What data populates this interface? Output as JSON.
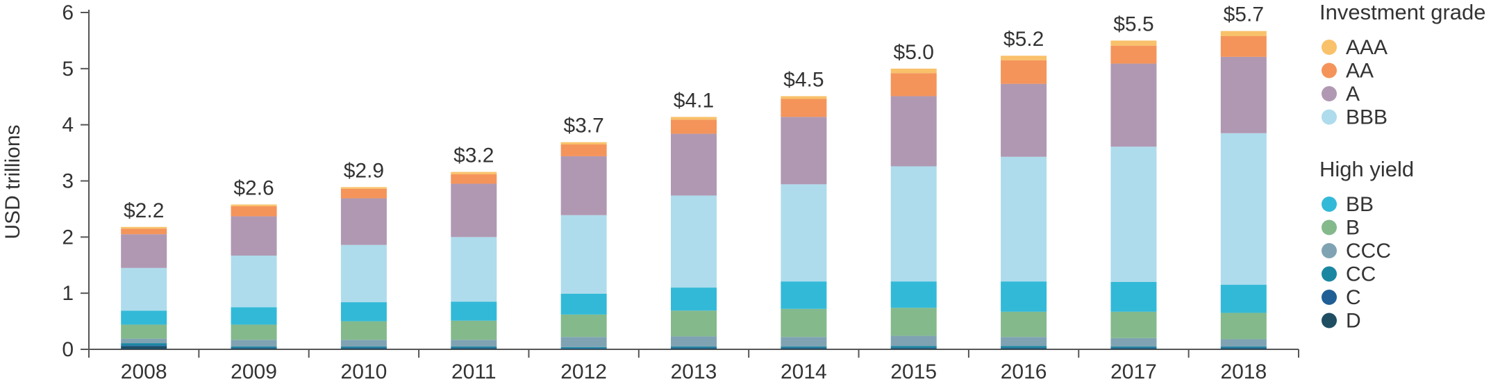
{
  "chart_data": {
    "type": "bar",
    "stacked": true,
    "ylabel": "USD trillions",
    "xlabel": "",
    "ylim": [
      0,
      6
    ],
    "yticks": [
      0,
      1,
      2,
      3,
      4,
      5,
      6
    ],
    "grid": false,
    "legend_position": "right",
    "categories": [
      "2008",
      "2009",
      "2010",
      "2011",
      "2012",
      "2013",
      "2014",
      "2015",
      "2016",
      "2017",
      "2018"
    ],
    "totals_labels": [
      "$2.2",
      "$2.6",
      "$2.9",
      "$3.2",
      "$3.7",
      "$4.1",
      "$4.5",
      "$5.0",
      "$5.2",
      "$5.5",
      "$5.7"
    ],
    "legend_groups": [
      {
        "heading": "Investment grade",
        "series": [
          "AAA",
          "AA",
          "A",
          "BBB"
        ]
      },
      {
        "heading": "High yield",
        "series": [
          "BB",
          "B",
          "CCC",
          "CC",
          "C",
          "D"
        ]
      }
    ],
    "series": [
      {
        "name": "D",
        "color": "#1f4e63",
        "values": [
          0.05,
          0.02,
          0.02,
          0.02,
          0.01,
          0.02,
          0.02,
          0.02,
          0.02,
          0.02,
          0.02
        ]
      },
      {
        "name": "C",
        "color": "#1f5f96",
        "values": [
          0.02,
          0.01,
          0.01,
          0.01,
          0.01,
          0.01,
          0.01,
          0.01,
          0.01,
          0.01,
          0.01
        ]
      },
      {
        "name": "CC",
        "color": "#1a87a2",
        "values": [
          0.04,
          0.02,
          0.02,
          0.02,
          0.02,
          0.02,
          0.02,
          0.03,
          0.03,
          0.02,
          0.02
        ]
      },
      {
        "name": "CCC",
        "color": "#7fa3b3",
        "values": [
          0.08,
          0.12,
          0.12,
          0.12,
          0.18,
          0.18,
          0.17,
          0.18,
          0.16,
          0.15,
          0.13
        ]
      },
      {
        "name": "B",
        "color": "#84b98c",
        "values": [
          0.25,
          0.27,
          0.33,
          0.34,
          0.4,
          0.46,
          0.5,
          0.5,
          0.45,
          0.47,
          0.47
        ]
      },
      {
        "name": "BB",
        "color": "#33b9d8",
        "values": [
          0.25,
          0.31,
          0.34,
          0.34,
          0.37,
          0.41,
          0.49,
          0.47,
          0.54,
          0.53,
          0.5
        ]
      },
      {
        "name": "BBB",
        "color": "#aedcec",
        "values": [
          0.76,
          0.92,
          1.02,
          1.15,
          1.4,
          1.64,
          1.73,
          2.05,
          2.22,
          2.41,
          2.7
        ]
      },
      {
        "name": "A",
        "color": "#b098b2",
        "values": [
          0.6,
          0.7,
          0.83,
          0.95,
          1.05,
          1.1,
          1.2,
          1.25,
          1.3,
          1.48,
          1.36
        ]
      },
      {
        "name": "AA",
        "color": "#f4945a",
        "values": [
          0.1,
          0.18,
          0.17,
          0.17,
          0.21,
          0.25,
          0.32,
          0.41,
          0.42,
          0.32,
          0.37
        ]
      },
      {
        "name": "AAA",
        "color": "#f9c16a",
        "values": [
          0.03,
          0.03,
          0.03,
          0.04,
          0.04,
          0.05,
          0.05,
          0.08,
          0.08,
          0.09,
          0.09
        ]
      }
    ]
  }
}
